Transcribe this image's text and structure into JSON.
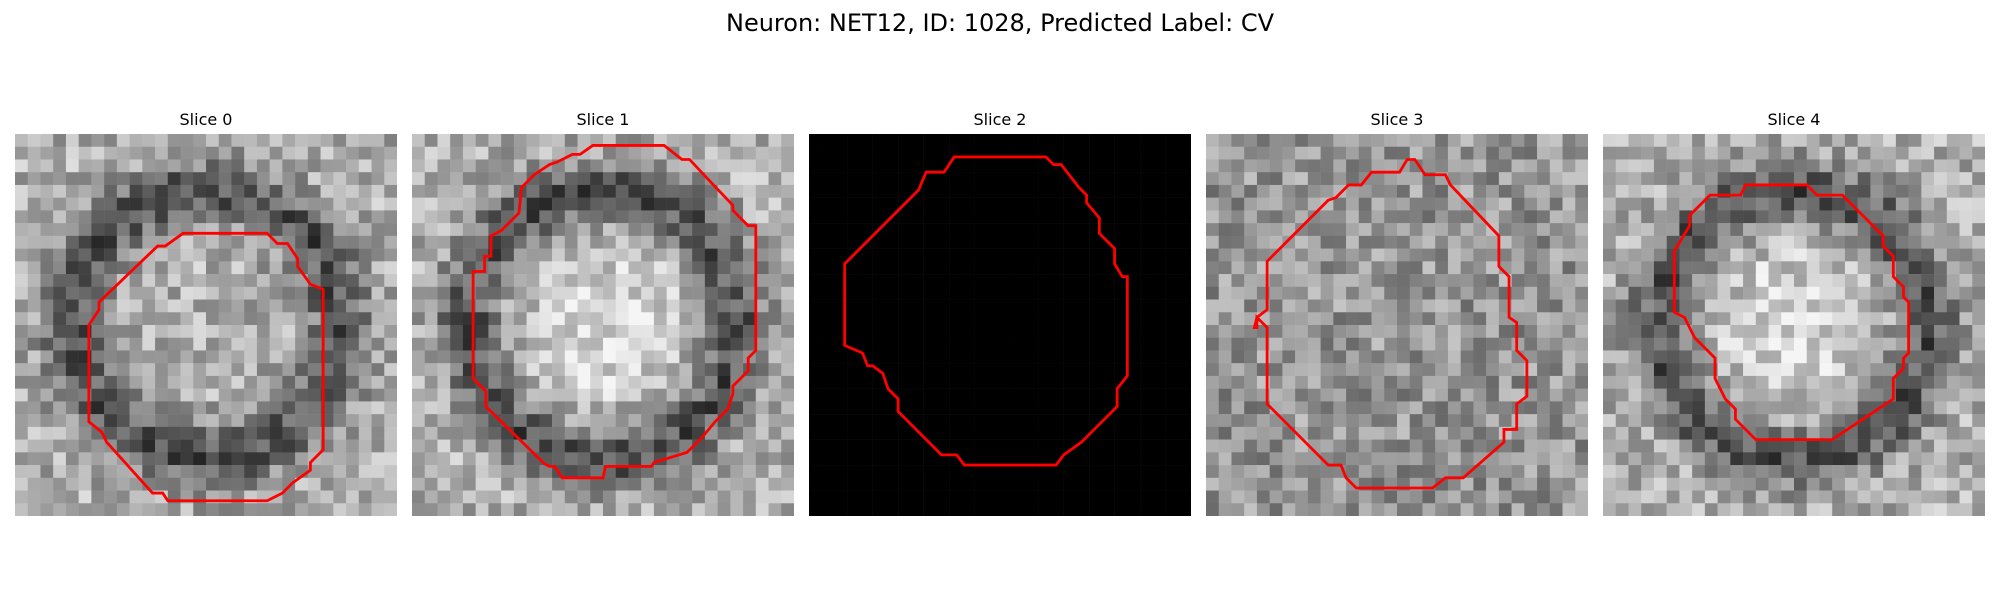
{
  "figure": {
    "suptitle": "Neuron: NET12, ID: 1028, Predicted Label: CV",
    "contour_color": "#ff0000",
    "colormap": "gray",
    "panels": [
      {
        "title": "Slice 0",
        "image": "noisy-gray-slice",
        "dark_ring": true,
        "bright_center": false
      },
      {
        "title": "Slice 1",
        "image": "noisy-gray-slice",
        "dark_ring": true,
        "bright_center": true
      },
      {
        "title": "Slice 2",
        "image": "all-black-slice",
        "dark_ring": false,
        "bright_center": false
      },
      {
        "title": "Slice 3",
        "image": "noisy-gray-slice",
        "dark_ring": false,
        "bright_center": false
      },
      {
        "title": "Slice 4",
        "image": "noisy-gray-slice",
        "dark_ring": true,
        "bright_center": true
      }
    ]
  }
}
